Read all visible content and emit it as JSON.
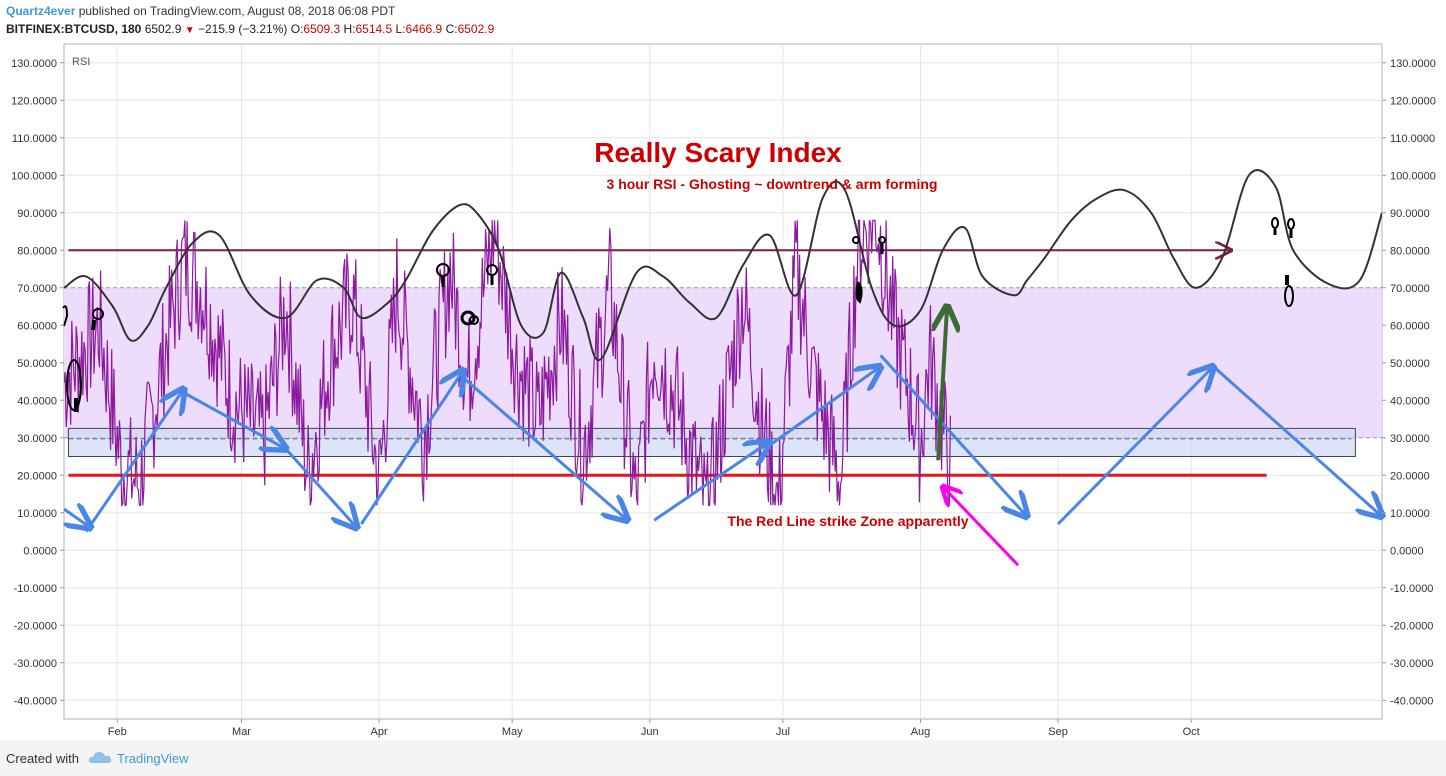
{
  "header": {
    "author": "Quartz4ever",
    "published_text": " published on TradingView.com, August 08, 2018 06:08 PDT",
    "symbol": "BITFINEX:BTCUSD, 180",
    "price": "6502.9",
    "change": "−215.9 (−3.21%)",
    "o_label": "O:",
    "o_value": "6509.3",
    "h_label": "H:",
    "h_value": "6514.5",
    "l_label": "L:",
    "l_value": "6466.9",
    "c_label": "C:",
    "c_value": "6502.9"
  },
  "footer": {
    "created_with": "Created with",
    "brand": "TradingView"
  },
  "chart_data": {
    "type": "line",
    "indicator_label": "RSI",
    "title": "Really Scary Index",
    "subtitle": "3 hour  RSI - Ghosting ~ downtrend & arm forming",
    "annotation": "The Red Line strike Zone apparently",
    "ylim": [
      -45,
      135
    ],
    "y_ticks": [
      130,
      120,
      110,
      100,
      90,
      80,
      70,
      60,
      50,
      40,
      30,
      20,
      10,
      0,
      -10,
      -20,
      -30,
      -40
    ],
    "y_tick_labels": [
      "130.0000",
      "120.0000",
      "110.0000",
      "100.0000",
      "90.0000",
      "80.0000",
      "70.0000",
      "60.0000",
      "50.0000",
      "40.0000",
      "30.0000",
      "20.0000",
      "10.0000",
      "0.0000",
      "-10.0000",
      "-20.0000",
      "-30.0000",
      "-40.0000"
    ],
    "x_labels": [
      "Feb",
      "Mar",
      "Apr",
      "May",
      "Jun",
      "Jul",
      "Aug",
      "Sep",
      "Oct"
    ],
    "x_label_days": [
      7,
      35,
      66,
      96,
      127,
      157,
      188,
      219,
      249
    ],
    "x_range_days": [
      -5,
      292
    ],
    "overbought": 70,
    "oversold": 30,
    "band_fill": "#eddcfb",
    "colors": {
      "rsi": "#8b1a9f",
      "wave": "#333333",
      "red_line": "#e8141a",
      "maroon_line": "#7a1f3d",
      "arrows": "#4a86e8",
      "green_arrow": "#3c6b34",
      "magenta_arrow": "#ff00ee",
      "title": "#cc0000",
      "grid": "#e6e6e6"
    },
    "red_line_level": 20,
    "red_line_days": [
      -4,
      266
    ],
    "maroon_line_level": 80,
    "maroon_line_days": [
      -4,
      258
    ],
    "support_box_range": [
      25,
      32.5
    ],
    "support_box_days": [
      -4,
      286
    ],
    "rsi_series": {
      "name": "RSI (3 hour)",
      "days": [
        -5,
        3,
        8,
        12,
        18,
        22,
        26,
        33,
        40,
        45,
        50,
        55,
        60,
        66,
        70,
        76,
        82,
        86,
        92,
        97,
        102,
        107,
        112,
        118,
        124,
        128,
        133,
        140,
        148,
        152,
        156,
        160,
        164,
        170,
        174,
        178,
        182,
        186,
        188,
        190,
        195
      ],
      "values": [
        45,
        60,
        22,
        18,
        55,
        78,
        70,
        40,
        30,
        65,
        20,
        52,
        68,
        18,
        70,
        30,
        75,
        45,
        86,
        50,
        35,
        62,
        26,
        70,
        12,
        55,
        40,
        10,
        68,
        35,
        12,
        76,
        45,
        18,
        82,
        90,
        60,
        40,
        28,
        52,
        20
      ]
    },
    "wave_series": {
      "name": "Ghost wave",
      "days": [
        -5,
        0,
        6,
        10,
        14,
        18,
        24,
        30,
        37,
        45,
        52,
        58,
        62,
        68,
        72,
        78,
        84,
        88,
        93,
        98,
        103,
        107,
        112,
        116,
        124,
        130,
        136,
        142,
        148,
        154,
        160,
        166,
        171,
        177,
        182,
        188,
        193,
        198,
        202,
        209,
        212,
        216,
        222,
        228,
        234,
        240,
        245,
        250,
        256,
        262,
        268,
        272,
        280,
        287,
        292
      ],
      "values": [
        70,
        73,
        65,
        56,
        60,
        70,
        82,
        84,
        68,
        62,
        72,
        70,
        62,
        66,
        72,
        85,
        92,
        90,
        80,
        60,
        58,
        74,
        62,
        51,
        74,
        73,
        66,
        62,
        76,
        84,
        68,
        94,
        96,
        70,
        60,
        64,
        80,
        86,
        73,
        68,
        72,
        78,
        88,
        94,
        96,
        90,
        78,
        70,
        78,
        100,
        97,
        80,
        71,
        72,
        90
      ]
    },
    "blue_arrows": [
      {
        "from": [
          -5,
          11
        ],
        "to": [
          1,
          6
        ]
      },
      {
        "from": [
          0,
          5
        ],
        "to": [
          22,
          43
        ]
      },
      {
        "from": [
          22,
          42
        ],
        "to": [
          45,
          27
        ]
      },
      {
        "from": [
          45,
          27
        ],
        "to": [
          61,
          6
        ]
      },
      {
        "from": [
          62,
          7
        ],
        "to": [
          85,
          48
        ]
      },
      {
        "from": [
          84,
          47
        ],
        "to": [
          122,
          8
        ]
      },
      {
        "from": [
          128,
          8
        ],
        "to": [
          154,
          29
        ]
      },
      {
        "from": [
          154,
          28
        ],
        "to": [
          179,
          49
        ]
      },
      {
        "from": [
          179,
          52
        ],
        "to": [
          212,
          9
        ]
      },
      {
        "from": [
          219,
          7
        ],
        "to": [
          254,
          49
        ]
      },
      {
        "from": [
          254,
          49
        ],
        "to": [
          292,
          9
        ]
      }
    ],
    "green_arrow": {
      "from": [
        192,
        24
      ],
      "to": [
        194,
        65
      ]
    },
    "magenta_arrow": {
      "from": [
        210,
        -4
      ],
      "to": [
        193,
        17
      ]
    },
    "maroon_arrow_head_day": 258
  }
}
